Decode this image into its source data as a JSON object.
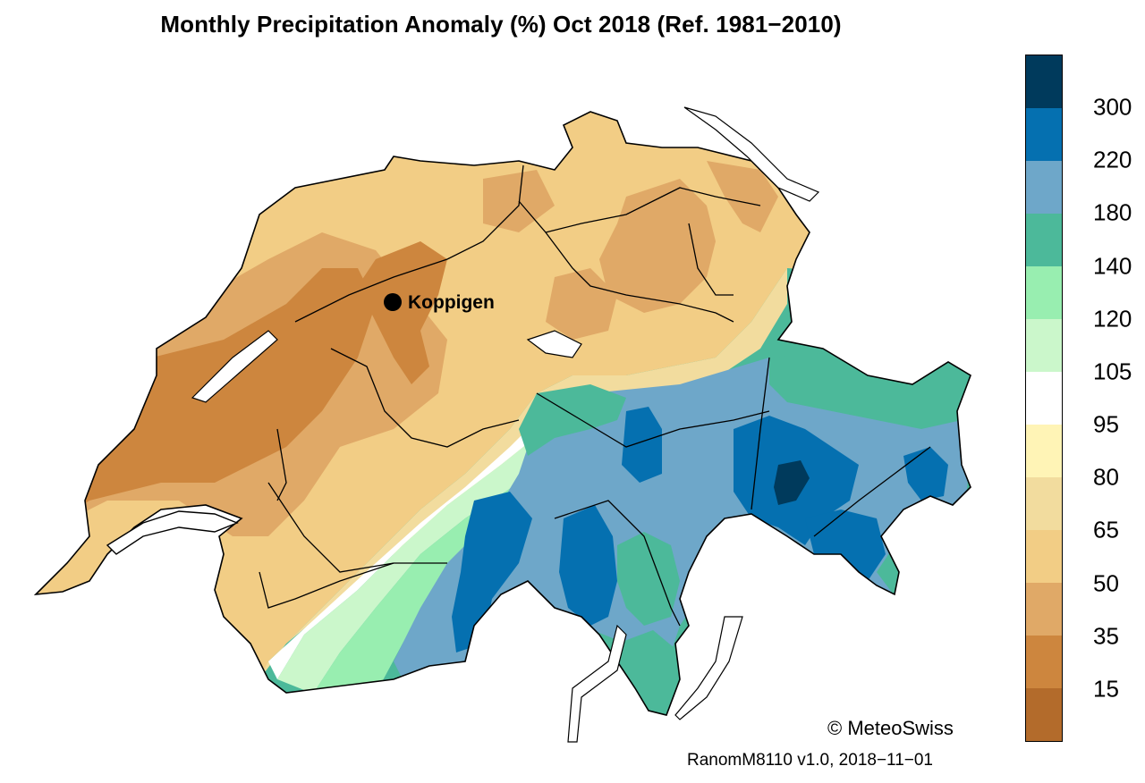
{
  "title": "Monthly Precipitation Anomaly (%) Oct 2018  (Ref. 1981−2010)",
  "location": {
    "name": "Koppigen"
  },
  "legend": {
    "labels": [
      "300",
      "220",
      "180",
      "140",
      "120",
      "105",
      "95",
      "80",
      "65",
      "50",
      "35",
      "15"
    ],
    "colors": [
      "#003a5c",
      "#0570b0",
      "#6ea7c9",
      "#4cb99a",
      "#98eeb0",
      "#cbf7cb",
      "#ffffff",
      "#fff4b6",
      "#f2dc9e",
      "#f2cd85",
      "#e0a967",
      "#cd863e",
      "#b36b2b"
    ]
  },
  "copyright": "© MeteoSwiss",
  "version": "RanomM8110 v1.0, 2018−11−01",
  "map_colors": {
    "border": "#000000",
    "lake": "#ffffff"
  }
}
